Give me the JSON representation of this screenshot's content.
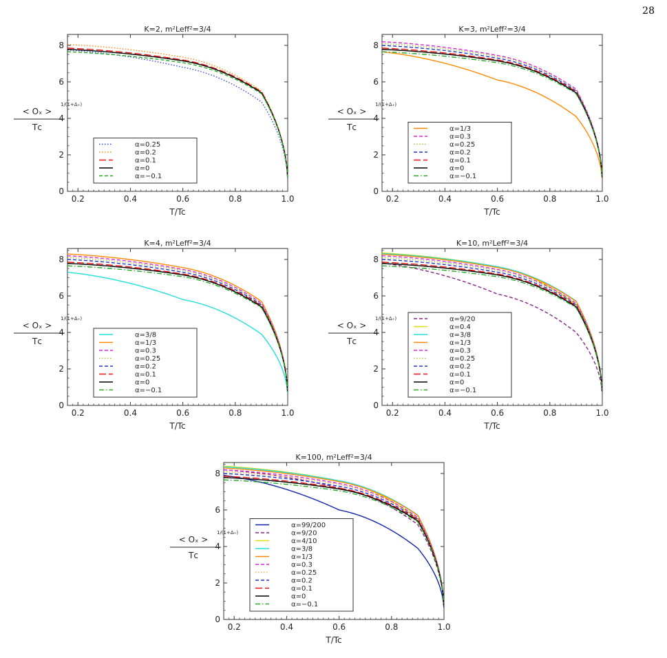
{
  "page": {
    "number": "28"
  },
  "axes_common": {
    "xlabel": "T/T_c",
    "ylabel": "< O_x >^(1/(1+Δ+)) / T_c",
    "xlim": [
      0.16,
      1.0
    ],
    "ylim": [
      0,
      8.6
    ],
    "xticks": [
      0.2,
      0.4,
      0.6,
      0.8,
      1.0
    ],
    "xtick_labels": [
      "0.2",
      "0.4",
      "0.6",
      "0.8",
      "1.0"
    ],
    "yticks": [
      0,
      2,
      4,
      6,
      8
    ],
    "ytick_labels": [
      "0",
      "2",
      "4",
      "6",
      "8"
    ]
  },
  "chart_data": [
    {
      "type": "line",
      "title": "K=2, m²L_eff²=3/4",
      "xlabel": "T/T_c",
      "ylabel": "< O_x >^(1/(1+Δ+)) / T_c",
      "xlim": [
        0.16,
        1.0
      ],
      "ylim": [
        0,
        8.6
      ],
      "legend_position": "bottom-left",
      "series": [
        {
          "name": "α=0.25",
          "color": "#3344dd",
          "dash": "dotted",
          "y_at_T0_16": 7.75,
          "y_at_T0_6": 6.8,
          "y_at_T0_9": 4.9
        },
        {
          "name": "α=0.2",
          "color": "#ff8800",
          "dash": "dotted",
          "y_at_T0_16": 8.05,
          "y_at_T0_6": 7.35,
          "y_at_T0_9": 5.5
        },
        {
          "name": "α=0.1",
          "color": "#ee1111",
          "dash": "longdash",
          "y_at_T0_16": 7.85,
          "y_at_T0_6": 7.2,
          "y_at_T0_9": 5.45
        },
        {
          "name": "α=0",
          "color": "#000000",
          "dash": "solid",
          "y_at_T0_16": 7.78,
          "y_at_T0_6": 7.15,
          "y_at_T0_9": 5.4
        },
        {
          "name": "α=−0.1",
          "color": "#22aa22",
          "dash": "dashed",
          "y_at_T0_16": 7.65,
          "y_at_T0_6": 7.05,
          "y_at_T0_9": 5.35
        }
      ]
    },
    {
      "type": "line",
      "title": "K=3, m²L_eff²=3/4",
      "xlabel": "T/T_c",
      "ylabel": "< O_x >^(1/(1+Δ+)) / T_c",
      "xlim": [
        0.16,
        1.0
      ],
      "ylim": [
        0,
        8.6
      ],
      "legend_position": "bottom-left",
      "series": [
        {
          "name": "α=1/3",
          "color": "#ff8800",
          "dash": "solid",
          "y_at_T0_16": 7.65,
          "y_at_T0_6": 6.1,
          "y_at_T0_9": 4.1
        },
        {
          "name": "α=0.3",
          "color": "#dd22dd",
          "dash": "dashed",
          "y_at_T0_16": 8.2,
          "y_at_T0_6": 7.45,
          "y_at_T0_9": 5.6
        },
        {
          "name": "α=0.25",
          "color": "#99cc33",
          "dash": "dotted",
          "y_at_T0_16": 8.1,
          "y_at_T0_6": 7.4,
          "y_at_T0_9": 5.55
        },
        {
          "name": "α=0.2",
          "color": "#2233cc",
          "dash": "dashed",
          "y_at_T0_16": 8.0,
          "y_at_T0_6": 7.3,
          "y_at_T0_9": 5.5
        },
        {
          "name": "α=0.1",
          "color": "#ee1111",
          "dash": "longdash",
          "y_at_T0_16": 7.85,
          "y_at_T0_6": 7.2,
          "y_at_T0_9": 5.45
        },
        {
          "name": "α=0",
          "color": "#000000",
          "dash": "solid",
          "y_at_T0_16": 7.78,
          "y_at_T0_6": 7.15,
          "y_at_T0_9": 5.4
        },
        {
          "name": "α=−0.1",
          "color": "#22aa22",
          "dash": "dashdot",
          "y_at_T0_16": 7.65,
          "y_at_T0_6": 7.05,
          "y_at_T0_9": 5.35
        }
      ]
    },
    {
      "type": "line",
      "title": "K=4, m²L_eff²=3/4",
      "xlabel": "T/T_c",
      "ylabel": "< O_x >^(1/(1+Δ+)) / T_c",
      "xlim": [
        0.16,
        1.0
      ],
      "ylim": [
        0,
        8.6
      ],
      "legend_position": "bottom-left",
      "series": [
        {
          "name": "α=3/8",
          "color": "#22dddd",
          "dash": "solid",
          "y_at_T0_16": 7.3,
          "y_at_T0_6": 5.8,
          "y_at_T0_9": 3.9
        },
        {
          "name": "α=1/3",
          "color": "#ff8800",
          "dash": "solid",
          "y_at_T0_16": 8.3,
          "y_at_T0_6": 7.55,
          "y_at_T0_9": 5.7
        },
        {
          "name": "α=0.3",
          "color": "#dd22dd",
          "dash": "dashed",
          "y_at_T0_16": 8.2,
          "y_at_T0_6": 7.45,
          "y_at_T0_9": 5.6
        },
        {
          "name": "α=0.25",
          "color": "#99cc33",
          "dash": "dotted",
          "y_at_T0_16": 8.1,
          "y_at_T0_6": 7.4,
          "y_at_T0_9": 5.55
        },
        {
          "name": "α=0.2",
          "color": "#2233cc",
          "dash": "dashed",
          "y_at_T0_16": 8.0,
          "y_at_T0_6": 7.3,
          "y_at_T0_9": 5.5
        },
        {
          "name": "α=0.1",
          "color": "#ee1111",
          "dash": "longdash",
          "y_at_T0_16": 7.85,
          "y_at_T0_6": 7.2,
          "y_at_T0_9": 5.45
        },
        {
          "name": "α=0",
          "color": "#000000",
          "dash": "solid",
          "y_at_T0_16": 7.78,
          "y_at_T0_6": 7.15,
          "y_at_T0_9": 5.4
        },
        {
          "name": "α=−0.1",
          "color": "#22aa22",
          "dash": "dashdot",
          "y_at_T0_16": 7.65,
          "y_at_T0_6": 7.05,
          "y_at_T0_9": 5.35
        }
      ]
    },
    {
      "type": "line",
      "title": "K=10, m²L_eff²=3/4",
      "xlabel": "T/T_c",
      "ylabel": "< O_x >^(1/(1+Δ+)) / T_c",
      "xlim": [
        0.16,
        1.0
      ],
      "ylim": [
        0,
        8.6
      ],
      "legend_position": "bottom-left",
      "series": [
        {
          "name": "α=9/20",
          "color": "#882288",
          "dash": "dashed",
          "y_at_T0_16": 7.8,
          "y_at_T0_6": 6.1,
          "y_at_T0_9": 4.0
        },
        {
          "name": "α=0.4",
          "color": "#dddd00",
          "dash": "solid",
          "y_at_T0_16": 8.35,
          "y_at_T0_6": 7.6,
          "y_at_T0_9": 5.5
        },
        {
          "name": "α=3/8",
          "color": "#22dddd",
          "dash": "solid",
          "y_at_T0_16": 8.32,
          "y_at_T0_6": 7.6,
          "y_at_T0_9": 5.72
        },
        {
          "name": "α=1/3",
          "color": "#ff8800",
          "dash": "solid",
          "y_at_T0_16": 8.28,
          "y_at_T0_6": 7.55,
          "y_at_T0_9": 5.7
        },
        {
          "name": "α=0.3",
          "color": "#dd22dd",
          "dash": "dashed",
          "y_at_T0_16": 8.2,
          "y_at_T0_6": 7.45,
          "y_at_T0_9": 5.6
        },
        {
          "name": "α=0.25",
          "color": "#99cc33",
          "dash": "dotted",
          "y_at_T0_16": 8.1,
          "y_at_T0_6": 7.4,
          "y_at_T0_9": 5.55
        },
        {
          "name": "α=0.2",
          "color": "#2233cc",
          "dash": "dashed",
          "y_at_T0_16": 8.0,
          "y_at_T0_6": 7.3,
          "y_at_T0_9": 5.5
        },
        {
          "name": "α=0.1",
          "color": "#ee1111",
          "dash": "longdash",
          "y_at_T0_16": 7.85,
          "y_at_T0_6": 7.2,
          "y_at_T0_9": 5.45
        },
        {
          "name": "α=0",
          "color": "#000000",
          "dash": "solid",
          "y_at_T0_16": 7.78,
          "y_at_T0_6": 7.15,
          "y_at_T0_9": 5.4
        },
        {
          "name": "α=−0.1",
          "color": "#22aa22",
          "dash": "dashdot",
          "y_at_T0_16": 7.65,
          "y_at_T0_6": 7.05,
          "y_at_T0_9": 5.35
        }
      ]
    },
    {
      "type": "line",
      "title": "K=100, m²L_eff²=3/4",
      "xlabel": "T/T_c",
      "ylabel": "< O_x >^(1/(1+Δ+)) / T_c",
      "xlim": [
        0.16,
        1.0
      ],
      "ylim": [
        0,
        8.6
      ],
      "legend_position": "bottom-left",
      "series": [
        {
          "name": "α=99/200",
          "color": "#1122aa",
          "dash": "solid",
          "y_at_T0_16": 7.9,
          "y_at_T0_6": 6.0,
          "y_at_T0_9": 3.9
        },
        {
          "name": "α=9/20",
          "color": "#882288",
          "dash": "dashed",
          "y_at_T0_16": 8.2,
          "y_at_T0_6": 7.2,
          "y_at_T0_9": 5.2
        },
        {
          "name": "α=4/10",
          "color": "#dddd00",
          "dash": "solid",
          "y_at_T0_16": 8.4,
          "y_at_T0_6": 7.6,
          "y_at_T0_9": 5.5
        },
        {
          "name": "α=3/8",
          "color": "#22dddd",
          "dash": "solid",
          "y_at_T0_16": 8.36,
          "y_at_T0_6": 7.6,
          "y_at_T0_9": 5.72
        },
        {
          "name": "α=1/3",
          "color": "#ff8800",
          "dash": "solid",
          "y_at_T0_16": 8.3,
          "y_at_T0_6": 7.55,
          "y_at_T0_9": 5.7
        },
        {
          "name": "α=0.3",
          "color": "#dd22dd",
          "dash": "dashed",
          "y_at_T0_16": 8.2,
          "y_at_T0_6": 7.45,
          "y_at_T0_9": 5.6
        },
        {
          "name": "α=0.25",
          "color": "#ffaa33",
          "dash": "dotted",
          "y_at_T0_16": 8.1,
          "y_at_T0_6": 7.4,
          "y_at_T0_9": 5.55
        },
        {
          "name": "α=0.2",
          "color": "#2233cc",
          "dash": "dashed",
          "y_at_T0_16": 8.0,
          "y_at_T0_6": 7.3,
          "y_at_T0_9": 5.5
        },
        {
          "name": "α=0.1",
          "color": "#ee1111",
          "dash": "longdash",
          "y_at_T0_16": 7.85,
          "y_at_T0_6": 7.2,
          "y_at_T0_9": 5.45
        },
        {
          "name": "α=0",
          "color": "#000000",
          "dash": "solid",
          "y_at_T0_16": 7.78,
          "y_at_T0_6": 7.15,
          "y_at_T0_9": 5.4
        },
        {
          "name": "α=−0.1",
          "color": "#22aa22",
          "dash": "dashdot",
          "y_at_T0_16": 7.65,
          "y_at_T0_6": 7.05,
          "y_at_T0_9": 5.35
        }
      ]
    }
  ]
}
